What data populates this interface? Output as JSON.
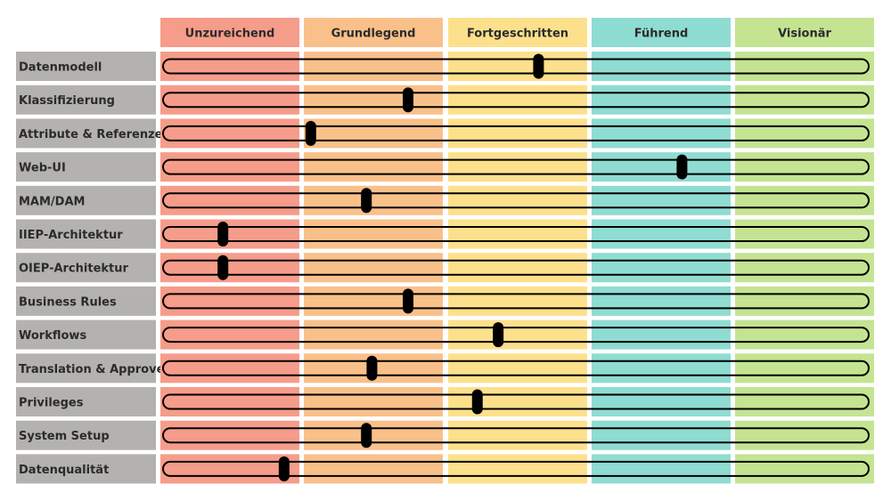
{
  "chart_data": {
    "type": "maturity-slider",
    "levels": [
      {
        "name": "Unzureichend",
        "color": "#f69c8a"
      },
      {
        "name": "Grundlegend",
        "color": "#f9c08a"
      },
      {
        "name": "Fortgeschritten",
        "color": "#fde08c"
      },
      {
        "name": "Führend",
        "color": "#8fdcd2"
      },
      {
        "name": "Visionär",
        "color": "#c4e492"
      }
    ],
    "label_color": "#b3b2ae",
    "xlim": [
      0,
      5
    ],
    "rows": [
      {
        "label": "Datenmodell",
        "value": 2.65
      },
      {
        "label": "Klassifizierung",
        "value": 1.75
      },
      {
        "label": "Attribute & Referenzen",
        "value": 1.05
      },
      {
        "label": "Web-UI",
        "value": 3.65
      },
      {
        "label": "MAM/DAM",
        "value": 1.45
      },
      {
        "label": "IIEP-Architektur",
        "value": 0.45
      },
      {
        "label": "OIEP-Architektur",
        "value": 0.45
      },
      {
        "label": "Business Rules",
        "value": 1.75
      },
      {
        "label": "Workflows",
        "value": 2.36
      },
      {
        "label": "Translation & Approve",
        "value": 1.49
      },
      {
        "label": "Privileges",
        "value": 2.21
      },
      {
        "label": "System Setup",
        "value": 1.45
      },
      {
        "label": "Datenqualität",
        "value": 0.89
      }
    ]
  }
}
